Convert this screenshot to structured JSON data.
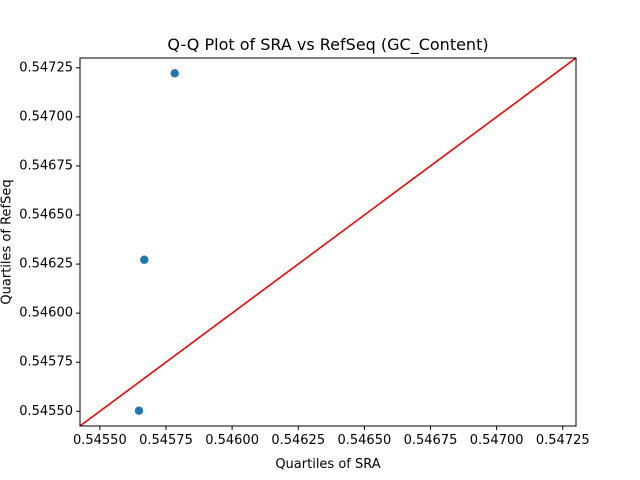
{
  "chart_data": {
    "type": "scatter",
    "title": "Q-Q Plot of SRA vs RefSeq (GC_Content)",
    "xlabel": "Quartiles of SRA",
    "ylabel": "Quartiles of RefSeq",
    "xlim": [
      0.545425,
      0.5473
    ],
    "ylim": [
      0.545425,
      0.5473
    ],
    "x_ticks": [
      0.5455,
      0.54575,
      0.546,
      0.54625,
      0.5465,
      0.54675,
      0.547,
      0.54725
    ],
    "x_tick_labels": [
      "0.54550",
      "0.54575",
      "0.54600",
      "0.54625",
      "0.54650",
      "0.54675",
      "0.54700",
      "0.54725"
    ],
    "y_ticks": [
      0.5455,
      0.54575,
      0.546,
      0.54625,
      0.5465,
      0.54675,
      0.547,
      0.54725
    ],
    "y_tick_labels": [
      "0.54550",
      "0.54575",
      "0.54600",
      "0.54625",
      "0.54650",
      "0.54675",
      "0.54700",
      "0.54725"
    ],
    "grid": false,
    "series": [
      {
        "points": [
          {
            "x": 0.545648,
            "y": 0.545503
          },
          {
            "x": 0.545668,
            "y": 0.546272
          },
          {
            "x": 0.545783,
            "y": 0.547222
          }
        ],
        "color": "#1f77b4",
        "marker": "circle"
      }
    ],
    "reference_line": {
      "type": "y=x",
      "color": "#ff0000"
    }
  }
}
